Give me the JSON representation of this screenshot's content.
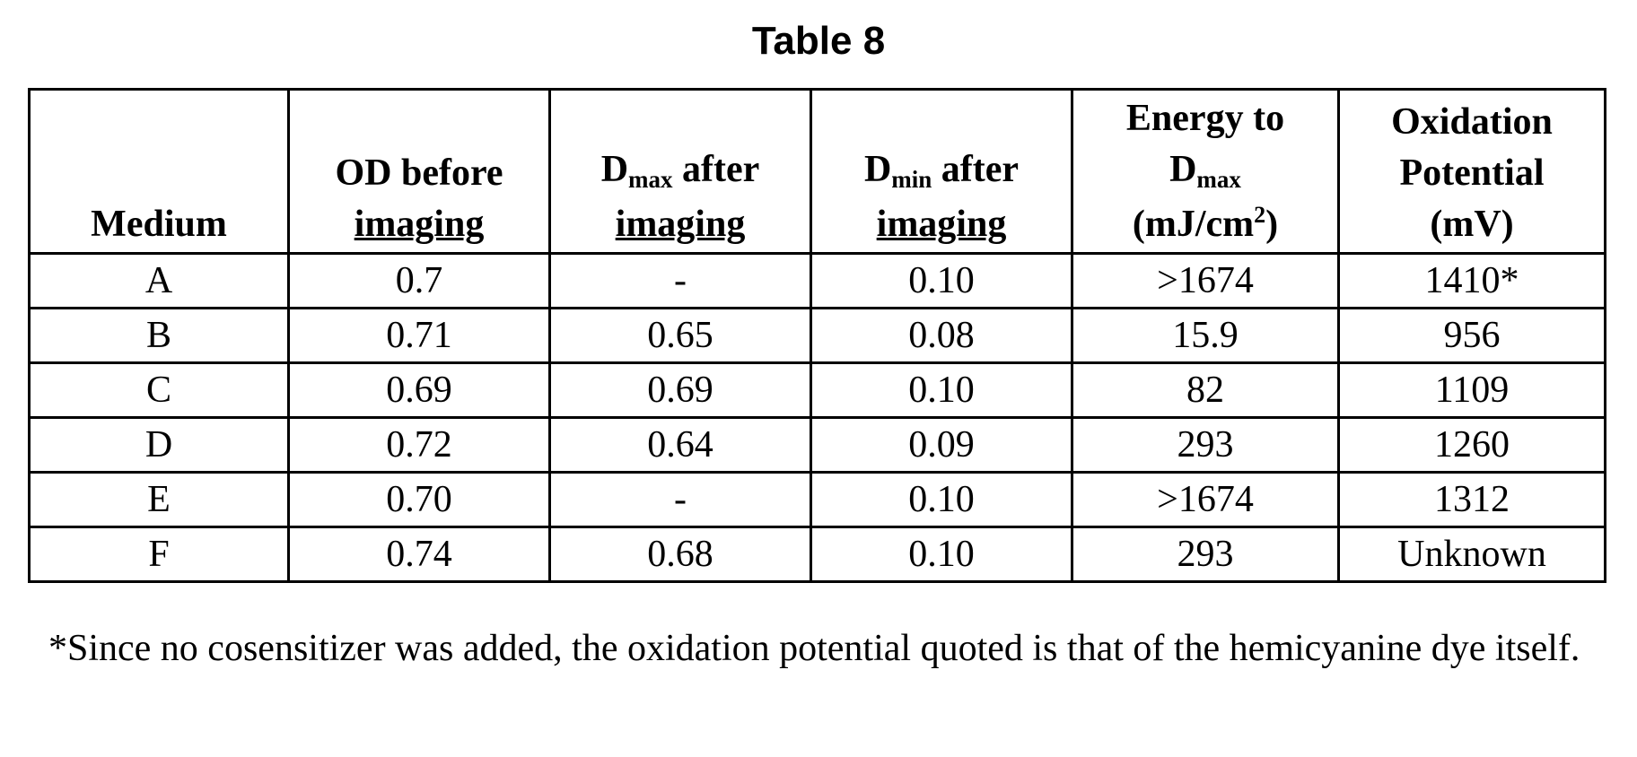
{
  "title": "Table 8",
  "headers": {
    "medium": "Medium",
    "od_before": {
      "line1": "OD before",
      "line2": "imaging"
    },
    "dmax_after": {
      "d": "D",
      "sub": "max",
      "line1_rest": " after",
      "line2": "imaging"
    },
    "dmin_after": {
      "d": "D",
      "sub": "min",
      "line1_rest": " after",
      "line2": "imaging"
    },
    "energy": {
      "line1": "Energy to",
      "d": "D",
      "sub": "max",
      "line3_pre": "(mJ/cm",
      "sup": "2",
      "line3_post": ")"
    },
    "oxidation": {
      "line1": "Oxidation",
      "line2": "Potential",
      "line3": "(mV)"
    }
  },
  "rows": [
    {
      "medium": "A",
      "od_before": "0.7",
      "dmax_after": "-",
      "dmin_after": "0.10",
      "energy": ">1674",
      "oxidation": "1410*"
    },
    {
      "medium": "B",
      "od_before": "0.71",
      "dmax_after": "0.65",
      "dmin_after": "0.08",
      "energy": "15.9",
      "oxidation": "956"
    },
    {
      "medium": "C",
      "od_before": "0.69",
      "dmax_after": "0.69",
      "dmin_after": "0.10",
      "energy": "82",
      "oxidation": "1109"
    },
    {
      "medium": "D",
      "od_before": "0.72",
      "dmax_after": "0.64",
      "dmin_after": "0.09",
      "energy": "293",
      "oxidation": "1260"
    },
    {
      "medium": "E",
      "od_before": "0.70",
      "dmax_after": "-",
      "dmin_after": "0.10",
      "energy": ">1674",
      "oxidation": "1312"
    },
    {
      "medium": "F",
      "od_before": "0.74",
      "dmax_after": "0.68",
      "dmin_after": "0.10",
      "energy": "293",
      "oxidation": "Unknown"
    }
  ],
  "footnote": "*Since no cosensitizer was added, the oxidation potential quoted is that of the hemicyanine dye itself."
}
